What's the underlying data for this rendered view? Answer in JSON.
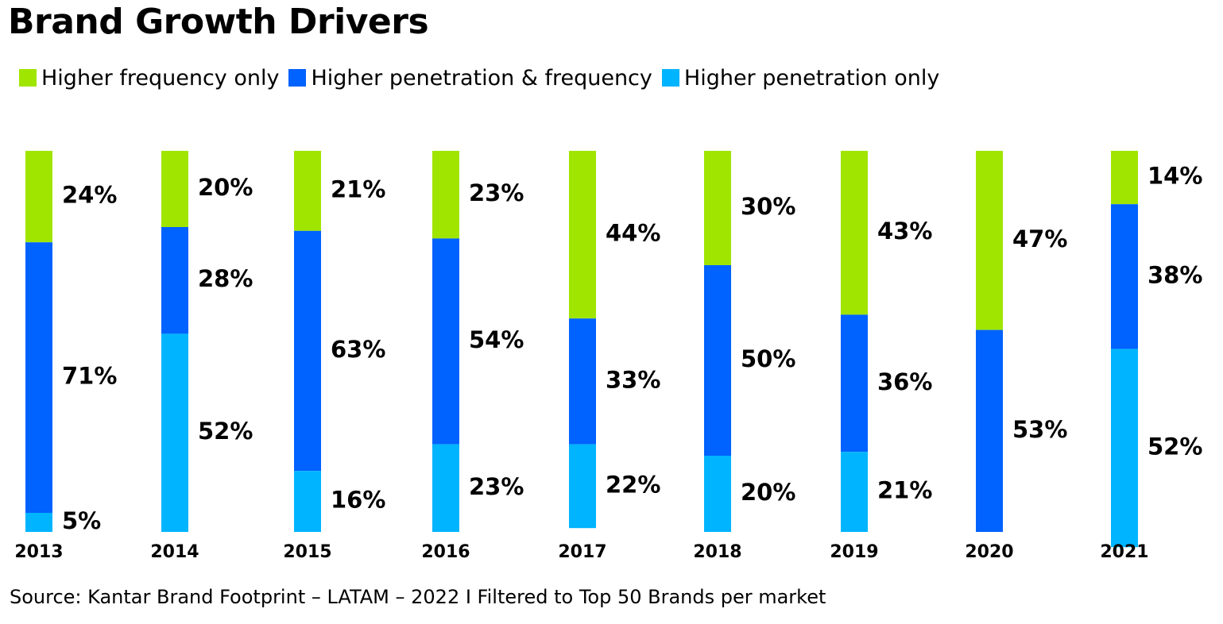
{
  "title": "Brand Growth Drivers",
  "source": "Source: Kantar Brand Footprint – LATAM – 2022 I Filtered to Top 50 Brands per market",
  "colors": {
    "Higher frequency only": "#a0e500",
    "Higher penetration & frequency": "#0062ff",
    "Higher penetration only": "#00b4ff"
  },
  "legend": [
    {
      "label": "Higher frequency only",
      "color": "#a0e500"
    },
    {
      "label": "Higher penetration & frequency",
      "color": "#0062ff"
    },
    {
      "label": "Higher penetration only",
      "color": "#00b4ff"
    }
  ],
  "chart_data": {
    "type": "bar",
    "stacked": true,
    "percent_stacked": true,
    "categories": [
      "2013",
      "2014",
      "2015",
      "2016",
      "2017",
      "2018",
      "2019",
      "2020",
      "2021"
    ],
    "series": [
      {
        "name": "Higher frequency only",
        "values": [
          24,
          20,
          21,
          23,
          44,
          30,
          43,
          47,
          14
        ],
        "labels": [
          "24%",
          "20%",
          "21%",
          "23%",
          "44%",
          "30%",
          "43%",
          "47%",
          "14%"
        ]
      },
      {
        "name": "Higher penetration & frequency",
        "values": [
          71,
          28,
          63,
          54,
          33,
          50,
          36,
          53,
          38
        ],
        "labels": [
          "71%",
          "28%",
          "63%",
          "54%",
          "33%",
          "50%",
          "36%",
          "53%",
          "38%"
        ]
      },
      {
        "name": "Higher penetration only",
        "values": [
          5,
          52,
          16,
          23,
          22,
          20,
          21,
          0,
          52
        ],
        "labels": [
          "5%",
          "52%",
          "16%",
          "23%",
          "22%",
          "20%",
          "21%",
          "",
          "52%"
        ]
      }
    ],
    "ylim": [
      0,
      100
    ],
    "grid": false,
    "legend_position": "top-left"
  }
}
